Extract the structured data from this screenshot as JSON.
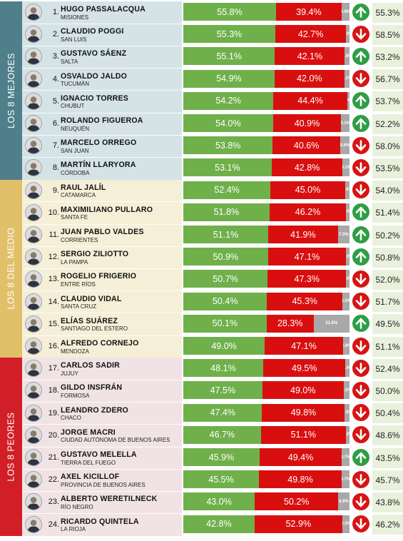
{
  "groups": [
    {
      "label": "LOS 8 MEJORES",
      "color": "#4e7f8b",
      "bg": "#d5e3e6"
    },
    {
      "label": "LOS 8 DEL MEDIO",
      "color": "#e1c06a",
      "bg": "#f5efd8"
    },
    {
      "label": "LOS 8 PEORES",
      "color": "#d21f27",
      "bg": "#f1e3e5"
    }
  ],
  "chart_data": {
    "type": "bar",
    "stacked": true,
    "categories": [
      "HUGO PASSALACQUA",
      "CLAUDIO POGGI",
      "GUSTAVO SÁENZ",
      "OSVALDO JALDO",
      "IGNACIO TORRES",
      "ROLANDO FIGUEROA",
      "MARCELO ORREGO",
      "MARTÍN LLARYORA",
      "RAUL JALÍL",
      "MAXIMILIANO PULLARO",
      "JUAN PABLO VALDES",
      "SERGIO ZILIOTTO",
      "ROGELIO FRIGERIO",
      "CLAUDIO VIDAL",
      "ELÍAS SUÁREZ",
      "ALFREDO CORNEJO",
      "CARLOS SADIR",
      "GILDO INSFRÁN",
      "LEANDRO ZDERO",
      "JORGE MACRI",
      "GUSTAVO MELELLA",
      "AXEL KICILLOF",
      "ALBERTO WERETILNECK",
      "RICARDO QUINTELA"
    ],
    "series_colors": [
      "#6fb04b",
      "#d90f0f",
      "#a8a8a8"
    ],
    "rows": [
      {
        "rank": "1.",
        "name": "HUGO PASSALACQUA",
        "province": "MISIONES",
        "approve": "55.8%",
        "disapprove": "39.4%",
        "ns": "4.8%",
        "trend": "up",
        "previous": "55.3%"
      },
      {
        "rank": "2.",
        "name": "CLAUDIO POGGI",
        "province": "SAN LUIS",
        "approve": "55.3%",
        "disapprove": "42.7%",
        "ns": "2.0%",
        "trend": "down",
        "previous": "58.5%"
      },
      {
        "rank": "3.",
        "name": "GUSTAVO SÁENZ",
        "province": "SALTA",
        "approve": "55.1%",
        "disapprove": "42.1%",
        "ns": "2.8%",
        "trend": "up",
        "previous": "53.2%"
      },
      {
        "rank": "4.",
        "name": "OSVALDO JALDO",
        "province": "TUCUMÁN",
        "approve": "54.9%",
        "disapprove": "42.0%",
        "ns": "3.1%",
        "trend": "down",
        "previous": "56.7%"
      },
      {
        "rank": "5.",
        "name": "IGNACIO TORRES",
        "province": "CHUBUT",
        "approve": "54.2%",
        "disapprove": "44.4%",
        "ns": "1.4%",
        "trend": "up",
        "previous": "53.7%"
      },
      {
        "rank": "6.",
        "name": "ROLANDO FIGUEROA",
        "province": "NEUQUÉN",
        "approve": "54.0%",
        "disapprove": "40.9%",
        "ns": "5.1%",
        "trend": "up",
        "previous": "52.2%"
      },
      {
        "rank": "7.",
        "name": "MARCELO ORREGO",
        "province": "SAN JUAN",
        "approve": "53.8%",
        "disapprove": "40.6%",
        "ns": "5.6%",
        "trend": "down",
        "previous": "58.0%"
      },
      {
        "rank": "8.",
        "name": "MARTÍN LLARYORA",
        "province": "CÓRDOBA",
        "approve": "53.1%",
        "disapprove": "42.8%",
        "ns": "4.1%",
        "trend": "down",
        "previous": "53.5%"
      },
      {
        "rank": "9.",
        "name": "RAUL JALÍL",
        "province": "CATAMARCA",
        "approve": "52.4%",
        "disapprove": "45.0%",
        "ns": "2.6%",
        "trend": "down",
        "previous": "54.0%"
      },
      {
        "rank": "10.",
        "name": "MAXIMILIANO PULLARO",
        "province": "SANTA FE",
        "approve": "51.8%",
        "disapprove": "46.2%",
        "ns": "2.0%",
        "trend": "up",
        "previous": "51.4%"
      },
      {
        "rank": "11.",
        "name": "JUAN PABLO VALDES",
        "province": "CORRIENTES",
        "approve": "51.1%",
        "disapprove": "41.9%",
        "ns": "7.0%",
        "trend": "up",
        "previous": "50.2%"
      },
      {
        "rank": "12.",
        "name": "SERGIO ZILIOTTO",
        "province": "LA PAMPA",
        "approve": "50.9%",
        "disapprove": "47.1%",
        "ns": "2.0%",
        "trend": "up",
        "previous": "50.8%"
      },
      {
        "rank": "13.",
        "name": "ROGELIO FRIGERIO",
        "province": "ENTRE RÍOS",
        "approve": "50.7%",
        "disapprove": "47.3%",
        "ns": "2.0%",
        "trend": "down",
        "previous": "52.0%"
      },
      {
        "rank": "14.",
        "name": "CLAUDIO VIDAL",
        "province": "SANTA CRUZ",
        "approve": "50.4%",
        "disapprove": "45.3%",
        "ns": "4.3%",
        "trend": "down",
        "previous": "51.7%"
      },
      {
        "rank": "15.",
        "name": "ELÍAS SUÁREZ",
        "province": "SANTIAGO DEL ESTERO",
        "approve": "50.1%",
        "disapprove": "28.3%",
        "ns": "21.6%",
        "trend": "up",
        "previous": "49.5%"
      },
      {
        "rank": "16.",
        "name": "ALFREDO CORNEJO",
        "province": "MENDOZA",
        "approve": "49.0%",
        "disapprove": "47.1%",
        "ns": "3.9%",
        "trend": "down",
        "previous": "51.1%"
      },
      {
        "rank": "17.",
        "name": "CARLOS SADIR",
        "province": "JUJUY",
        "approve": "48.1%",
        "disapprove": "49.5%",
        "ns": "2.4%",
        "trend": "down",
        "previous": "52.4%"
      },
      {
        "rank": "18.",
        "name": "GILDO INSFRÁN",
        "province": "FORMOSA",
        "approve": "47.5%",
        "disapprove": "49.0%",
        "ns": "3.5%",
        "trend": "down",
        "previous": "50.0%"
      },
      {
        "rank": "19.",
        "name": "LEANDRO ZDERO",
        "province": "CHACO",
        "approve": "47.4%",
        "disapprove": "49.8%",
        "ns": "2.8%",
        "trend": "down",
        "previous": "50.4%"
      },
      {
        "rank": "20.",
        "name": "JORGE MACRI",
        "province": "CIUDAD AUTÓNOMA DE BUENOS AIRES",
        "approve": "46.7%",
        "disapprove": "51.1%",
        "ns": "2.2%",
        "trend": "down",
        "previous": "48.6%"
      },
      {
        "rank": "21.",
        "name": "GUSTAVO MELELLA",
        "province": "TIERRA DEL FUEGO",
        "approve": "45.9%",
        "disapprove": "49.4%",
        "ns": "4.7%",
        "trend": "up",
        "previous": "43.5%"
      },
      {
        "rank": "22.",
        "name": "AXEL KICILLOF",
        "province": "PROVINCIA DE BUENOS AIRES",
        "approve": "45.5%",
        "disapprove": "49.8%",
        "ns": "4.7%",
        "trend": "down",
        "previous": "45.7%"
      },
      {
        "rank": "23.",
        "name": "ALBERTO WERETILNECK",
        "province": "RÍO NEGRO",
        "approve": "43.0%",
        "disapprove": "50.2%",
        "ns": "6.8%",
        "trend": "down",
        "previous": "43.8%"
      },
      {
        "rank": "24.",
        "name": "RICARDO QUINTELA",
        "province": "LA RIOJA",
        "approve": "42.8%",
        "disapprove": "52.9%",
        "ns": "4.3%",
        "trend": "down",
        "previous": "46.2%"
      }
    ]
  }
}
